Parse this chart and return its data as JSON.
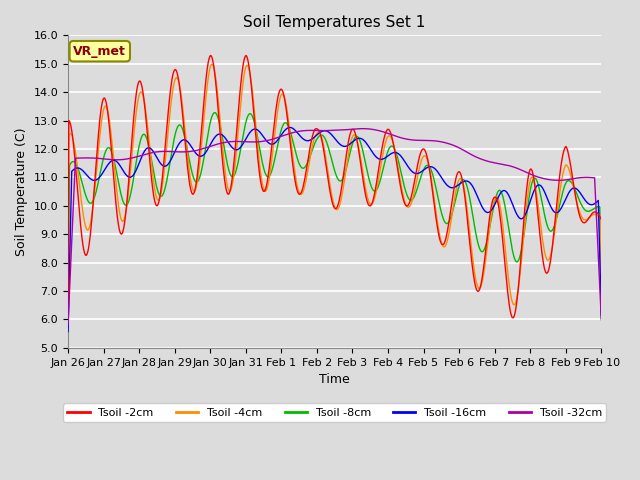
{
  "title": "Soil Temperatures Set 1",
  "xlabel": "Time",
  "ylabel": "Soil Temperature (C)",
  "ylim": [
    5.0,
    16.0
  ],
  "yticks": [
    5.0,
    6.0,
    7.0,
    8.0,
    9.0,
    10.0,
    11.0,
    12.0,
    13.0,
    14.0,
    15.0,
    16.0
  ],
  "xtick_labels": [
    "Jan 26",
    "Jan 27",
    "Jan 28",
    "Jan 29",
    "Jan 30",
    "Jan 31",
    "Feb 1",
    "Feb 2",
    "Feb 3",
    "Feb 4",
    "Feb 5",
    "Feb 6",
    "Feb 7",
    "Feb 8",
    "Feb 9",
    "Feb 10"
  ],
  "series_names": [
    "Tsoil -2cm",
    "Tsoil -4cm",
    "Tsoil -8cm",
    "Tsoil -16cm",
    "Tsoil -32cm"
  ],
  "series_colors": [
    "#ff0000",
    "#ff8c00",
    "#00bb00",
    "#0000ff",
    "#aa00aa"
  ],
  "bg_color": "#dcdcdc",
  "grid_color": "#ffffff",
  "annotation_text": "VR_met",
  "annotation_fg": "#8b0000",
  "annotation_bg": "#ffffa0",
  "annotation_edge": "#888800",
  "title_fontsize": 11,
  "axis_label_fontsize": 9,
  "tick_fontsize": 8,
  "legend_fontsize": 8,
  "linewidth": 1.0
}
